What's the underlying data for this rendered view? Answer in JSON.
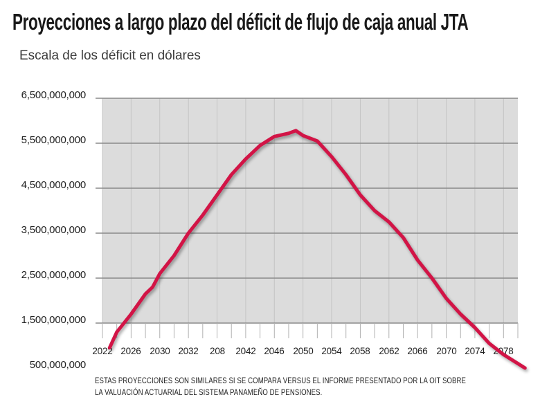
{
  "header": {
    "title": "Proyecciones a largo plazo del déficit de flujo de caja anual JTA",
    "subtitle": "Escala de los déficit en dólares"
  },
  "y_axis": {
    "labels": [
      "6,500,000,000",
      "5,500,000,000",
      "4,500,000,000",
      "3,500,000,000",
      "2,500,000,000",
      "1,500,000,000",
      "500,000,000"
    ]
  },
  "x_axis": {
    "labels": [
      "2022",
      "2026",
      "2030",
      "2032",
      "208",
      "2042",
      "2046",
      "2050",
      "2054",
      "2058",
      "2062",
      "2066",
      "2070",
      "2074",
      "2078"
    ]
  },
  "footer": {
    "line1": "ESTAS PROYECCIONES SON SIMILARES SI SE COMPARA VERSUS EL INFORME PRESENTADO POR LA OIT SOBRE",
    "line2": "LA VALUACIÓN ACTUARIAL DEL SISTEMA PANAMEÑO DE PENSIONES."
  },
  "colors": {
    "line": "#d21446",
    "plot_bg": "#dcdcdc",
    "grid_major": "#8a8a8a",
    "grid_minor": "#c4c4c4",
    "axis_tick": "#b0b0b0",
    "text": "#222222"
  },
  "chart_data": {
    "type": "line",
    "title": "Proyecciones a largo plazo del déficit de flujo de caja anual JTA",
    "ylabel": "Escala de los déficit en dólares",
    "xlabel": "",
    "xlim": [
      2022,
      2080
    ],
    "ylim": [
      500000000,
      6500000000
    ],
    "grid": true,
    "legend": "none",
    "y_tick_step": 1000000000,
    "x_tick_step_labels": 4,
    "x_tick_step_minor": 2,
    "y_tick_labels": [
      "6,500,000,000",
      "5,500,000,000",
      "4,500,000,000",
      "3,500,000,000",
      "2,500,000,000",
      "1,500,000,000",
      "500,000,000"
    ],
    "x_tick_labels_shown": [
      "2022",
      "2026",
      "2030",
      "2032",
      "208",
      "2042",
      "2046",
      "2050",
      "2054",
      "2058",
      "2062",
      "2066",
      "2070",
      "2074",
      "2078"
    ],
    "x": [
      2023,
      2024,
      2026,
      2028,
      2029,
      2030,
      2032,
      2034,
      2036,
      2038,
      2040,
      2042,
      2044,
      2046,
      2048,
      2049,
      2050,
      2052,
      2054,
      2056,
      2058,
      2060,
      2062,
      2064,
      2066,
      2068,
      2070,
      2072,
      2074,
      2076,
      2078,
      2080,
      2081
    ],
    "values": [
      950000000,
      1300000000,
      1700000000,
      2150000000,
      2300000000,
      2600000000,
      3000000000,
      3500000000,
      3900000000,
      4350000000,
      4800000000,
      5150000000,
      5450000000,
      5650000000,
      5720000000,
      5780000000,
      5670000000,
      5550000000,
      5200000000,
      4800000000,
      4350000000,
      4000000000,
      3750000000,
      3400000000,
      2900000000,
      2500000000,
      2050000000,
      1700000000,
      1400000000,
      1050000000,
      800000000,
      600000000,
      500000000
    ]
  }
}
